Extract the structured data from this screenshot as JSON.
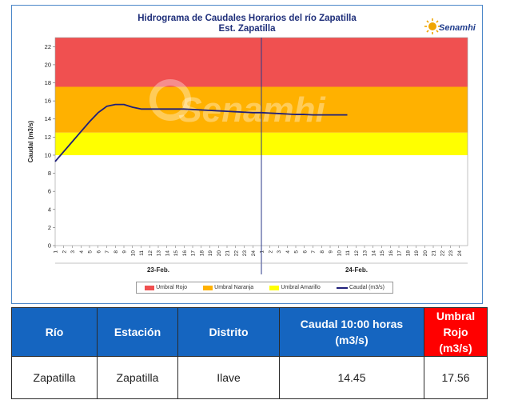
{
  "header": {
    "title": "Hidrograma de Caudales Horarios del río Zapatilla",
    "subtitle": "Est. Zapatilla",
    "logo_text": "Senamhi",
    "watermark": "Senamhi"
  },
  "colors": {
    "umbral_rojo": "#f05050",
    "umbral_naranja": "#ffb100",
    "umbral_amarillo": "#ffff00",
    "caudal_line": "#1f1f7a",
    "header_blue": "#1565c0",
    "header_red": "#ff0000"
  },
  "chart_data": {
    "type": "line",
    "ylabel": "Caudal (m3/s)",
    "ylim": [
      0,
      23
    ],
    "yticks": [
      0,
      2,
      4,
      6,
      8,
      10,
      12,
      14,
      16,
      18,
      20,
      22
    ],
    "x_tick_labels_day1": [
      "1",
      "2",
      "3",
      "4",
      "5",
      "6",
      "7",
      "8",
      "9",
      "10",
      "11",
      "12",
      "13",
      "14",
      "15",
      "16",
      "17",
      "18",
      "19",
      "20",
      "21",
      "22",
      "23",
      "24"
    ],
    "x_tick_labels_day2": [
      "1",
      "2",
      "3",
      "4",
      "5",
      "6",
      "7",
      "8",
      "9",
      "10",
      "11",
      "12",
      "13",
      "14",
      "15",
      "16",
      "17",
      "18",
      "19",
      "20",
      "21",
      "22",
      "23",
      "24"
    ],
    "day_labels": [
      "23-Feb.",
      "24-Feb."
    ],
    "thresholds": [
      {
        "name": "Umbral Amarillo",
        "from": 10,
        "to": 12.5
      },
      {
        "name": "Umbral Naranja",
        "from": 12.5,
        "to": 17.56
      },
      {
        "name": "Umbral Rojo",
        "from": 17.56,
        "to": 23
      }
    ],
    "series": [
      {
        "name": "Caudal (m3/s)",
        "x": [
          1,
          2,
          3,
          4,
          5,
          6,
          7,
          8,
          9,
          10,
          11,
          12,
          13,
          14,
          15,
          16,
          17,
          18,
          19,
          20,
          21,
          22,
          23,
          24,
          25,
          26,
          27,
          28,
          29,
          30,
          31,
          32,
          33,
          34,
          35
        ],
        "values": [
          9.3,
          10.4,
          11.5,
          12.6,
          13.7,
          14.7,
          15.4,
          15.6,
          15.6,
          15.3,
          15.1,
          15.1,
          15.1,
          15.1,
          15.1,
          15.1,
          15.05,
          15.0,
          14.95,
          14.9,
          14.85,
          14.8,
          14.75,
          14.7,
          14.7,
          14.65,
          14.6,
          14.55,
          14.5,
          14.5,
          14.45,
          14.45,
          14.45,
          14.45,
          14.45
        ]
      }
    ],
    "legend": [
      "Umbral Rojo",
      "Umbral Naranja",
      "Umbral Amarillo",
      "Caudal (m3/s)"
    ]
  },
  "table": {
    "headers": [
      "Río",
      "Estación",
      "Distrito",
      "Caudal 10:00 horas (m3/s)",
      "Umbral Rojo (m3/s)"
    ],
    "row": [
      "Zapatilla",
      "Zapatilla",
      "Ilave",
      "14.45",
      "17.56"
    ]
  }
}
